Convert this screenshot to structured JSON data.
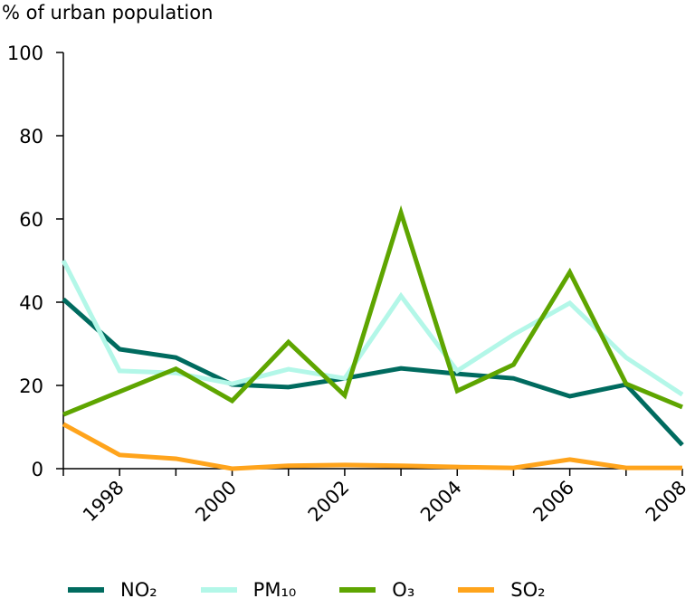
{
  "chart_data": {
    "type": "line",
    "title": "",
    "ylabel": "% of urban population",
    "xlabel": "",
    "ylim": [
      0,
      100
    ],
    "yticks": [
      0,
      20,
      40,
      60,
      80,
      100
    ],
    "xlim": [
      1997,
      2008
    ],
    "xticks": [
      1998,
      2000,
      2002,
      2004,
      2006,
      2008
    ],
    "grid": false,
    "legend_position": "bottom",
    "x": [
      1997,
      1998,
      1999,
      2000,
      2001,
      2002,
      2003,
      2004,
      2005,
      2006,
      2007,
      2008
    ],
    "series": [
      {
        "name": "NO₂",
        "color": "#006b5f",
        "values": [
          40.7,
          28.7,
          26.7,
          20.2,
          19.6,
          21.7,
          24.1,
          22.8,
          21.7,
          17.4,
          20.2,
          5.7
        ]
      },
      {
        "name": "PM₁₀",
        "color": "#b3f7e8",
        "values": [
          50,
          23.5,
          23,
          20.4,
          23.9,
          21.7,
          41.5,
          23.5,
          32.2,
          39.8,
          26.7,
          17.8
        ]
      },
      {
        "name": "O₃",
        "color": "#5ea500",
        "values": [
          13,
          18.5,
          24,
          16.3,
          30.4,
          17.6,
          61.5,
          18.7,
          25,
          47.2,
          20.4,
          14.8
        ]
      },
      {
        "name": "SO₂",
        "color": "#ffa41c",
        "values": [
          10.7,
          3.3,
          2.4,
          0,
          0.7,
          0.9,
          0.7,
          0.4,
          0.2,
          2.2,
          0.2,
          0.2
        ]
      }
    ]
  }
}
